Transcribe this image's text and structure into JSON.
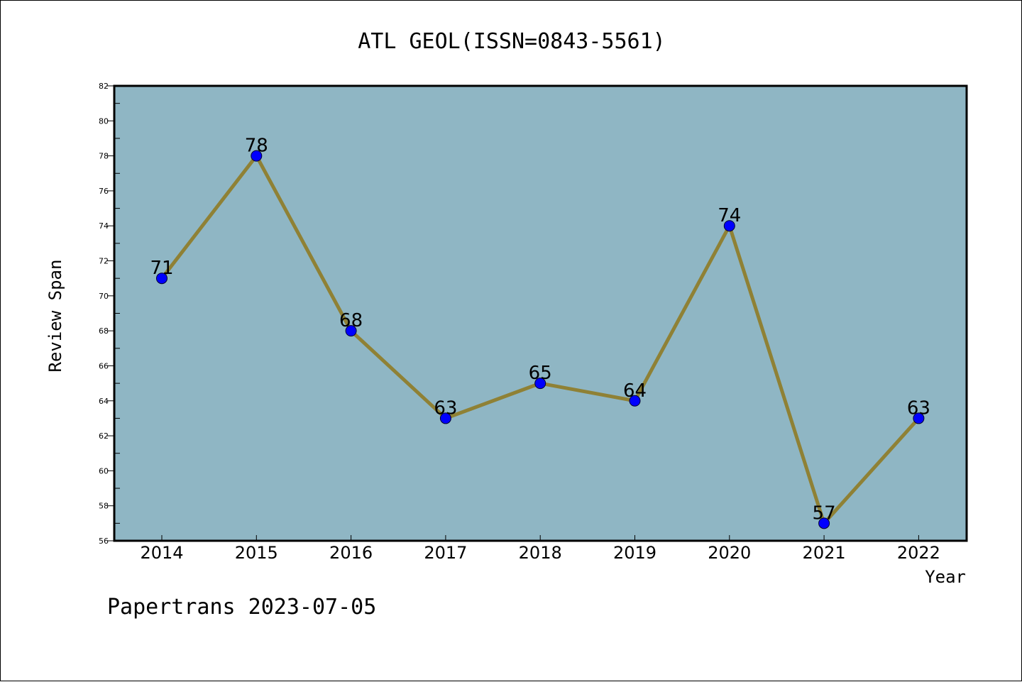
{
  "chart_data": {
    "type": "line",
    "title": "ATL GEOL(ISSN=0843-5561)",
    "xlabel": "Year",
    "ylabel": "Review Span",
    "x": [
      "2014",
      "2015",
      "2016",
      "2017",
      "2018",
      "2019",
      "2020",
      "2021",
      "2022"
    ],
    "values": [
      71,
      78,
      68,
      63,
      65,
      64,
      74,
      57,
      63
    ],
    "data_labels": [
      "71",
      "78",
      "68",
      "63",
      "65",
      "64",
      "74",
      "57",
      "63"
    ],
    "ylim": [
      56,
      82
    ],
    "y_ticks": [
      "56",
      "58",
      "60",
      "62",
      "64",
      "66",
      "68",
      "70",
      "72",
      "74",
      "76",
      "78",
      "80",
      "82"
    ],
    "grid": false,
    "legend": "none",
    "colors": {
      "plot_background": "#8fb6c4",
      "line": "#8f8135",
      "marker": "#0000ff"
    }
  },
  "footer": {
    "watermark": "Papertrans 2023-07-05"
  }
}
